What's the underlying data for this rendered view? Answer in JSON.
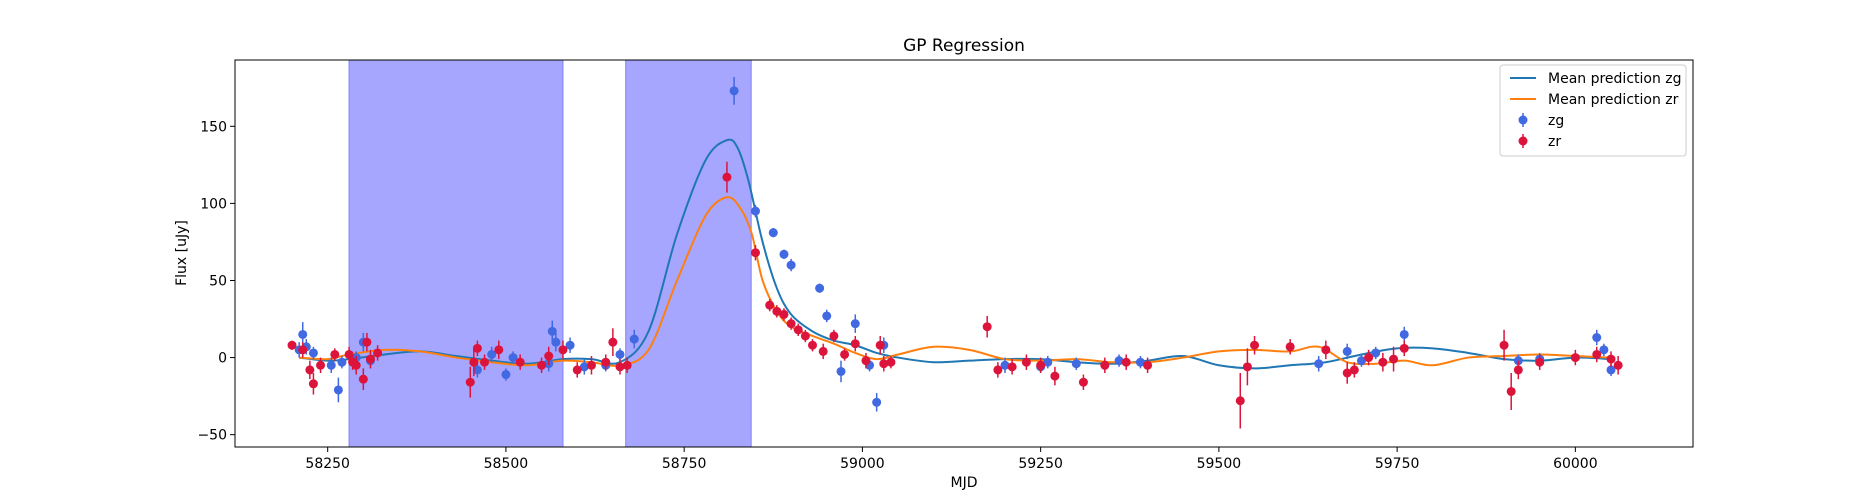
{
  "chart_data": {
    "type": "scatter",
    "title": "GP Regression",
    "xlabel": "MJD",
    "ylabel": "Flux [uJy]",
    "xlim": [
      58120,
      60165
    ],
    "ylim": [
      -58,
      193
    ],
    "x_ticks": [
      58250,
      58500,
      58750,
      59000,
      59250,
      59500,
      59750,
      60000
    ],
    "y_ticks": [
      -50,
      0,
      50,
      100,
      150
    ],
    "shaded_regions": [
      {
        "x": [
          58280,
          58580
        ],
        "color": "#a6a6ff"
      },
      {
        "x": [
          58668,
          58844
        ],
        "color": "#a6a6ff"
      }
    ],
    "legend_placement": "top-right",
    "series": [
      {
        "name": "Mean prediction zg",
        "kind": "line",
        "color": "#1f77b4",
        "x": [
          58210,
          58250,
          58280,
          58330,
          58380,
          58430,
          58480,
          58530,
          58580,
          58620,
          58660,
          58700,
          58740,
          58780,
          58810,
          58825,
          58840,
          58860,
          58880,
          58900,
          58930,
          58960,
          58990,
          59020,
          59050,
          59100,
          59150,
          59200,
          59250,
          59300,
          59350,
          59400,
          59450,
          59500,
          59550,
          59600,
          59650,
          59700,
          59750,
          59800,
          59850,
          59900,
          59950,
          60000,
          60050
        ],
        "y": [
          0,
          -2,
          -1,
          2,
          4,
          1,
          -2,
          -4,
          -1,
          -1,
          -3,
          17,
          80,
          128,
          141,
          136,
          115,
          75,
          45,
          28,
          17,
          11,
          8,
          3,
          0,
          -3,
          -2,
          -1,
          -1,
          -3,
          -4,
          -2,
          1,
          -5,
          -7,
          -5,
          -3,
          2,
          6,
          6,
          3,
          -1,
          -2,
          0,
          -1
        ]
      },
      {
        "name": "Mean prediction zr",
        "kind": "line",
        "color": "#ff7f0e",
        "x": [
          58210,
          58250,
          58280,
          58330,
          58380,
          58430,
          58480,
          58530,
          58580,
          58620,
          58660,
          58700,
          58740,
          58780,
          58810,
          58830,
          58845,
          58860,
          58880,
          58900,
          58930,
          58960,
          58990,
          59020,
          59050,
          59100,
          59150,
          59200,
          59250,
          59300,
          59350,
          59400,
          59450,
          59500,
          59550,
          59600,
          59640,
          59680,
          59720,
          59760,
          59800,
          59850,
          59900,
          59950,
          60000,
          60050
        ],
        "y": [
          0,
          -1,
          2,
          5,
          4,
          0,
          -3,
          -5,
          -2,
          -3,
          -5,
          5,
          50,
          92,
          104,
          96,
          80,
          50,
          30,
          20,
          14,
          9,
          3,
          -1,
          2,
          7,
          5,
          -1,
          -2,
          -1,
          -3,
          -3,
          0,
          4,
          5,
          4,
          7,
          -3,
          -4,
          -2,
          -5,
          0,
          1,
          2,
          1,
          0
        ]
      },
      {
        "name": "zg",
        "kind": "errorbar",
        "color": "#4169e1",
        "x": [
          58210,
          58215,
          58220,
          58230,
          58255,
          58265,
          58270,
          58290,
          58300,
          58310,
          58460,
          58480,
          58500,
          58510,
          58560,
          58565,
          58570,
          58590,
          58610,
          58640,
          58660,
          58680,
          58820,
          58850,
          58875,
          58890,
          58900,
          58940,
          58950,
          58970,
          58990,
          59010,
          59020,
          59030,
          59200,
          59250,
          59260,
          59300,
          59360,
          59390,
          59640,
          59680,
          59700,
          59720,
          59760,
          59920,
          59950,
          60030,
          60040,
          60050
        ],
        "y": [
          5,
          15,
          7,
          3,
          -5,
          -21,
          -3,
          0,
          10,
          -2,
          -8,
          2,
          -11,
          0,
          -4,
          17,
          10,
          8,
          -6,
          -5,
          2,
          12,
          173,
          95,
          81,
          67,
          60,
          45,
          27,
          -9,
          22,
          -5,
          -29,
          8,
          -5,
          -6,
          -3,
          -4,
          -2,
          -3,
          -4,
          4,
          -2,
          3,
          15,
          -2,
          -1,
          13,
          5,
          -8
        ],
        "err": [
          5,
          8,
          5,
          4,
          5,
          8,
          4,
          4,
          6,
          5,
          5,
          5,
          4,
          4,
          5,
          7,
          6,
          5,
          5,
          4,
          4,
          6,
          9,
          4,
          3,
          3,
          4,
          3,
          4,
          7,
          6,
          4,
          6,
          5,
          5,
          4,
          4,
          4,
          4,
          4,
          5,
          5,
          4,
          4,
          5,
          4,
          4,
          5,
          4,
          4
        ]
      },
      {
        "name": "zr",
        "kind": "errorbar",
        "color": "#dc143c",
        "x": [
          58200,
          58215,
          58225,
          58230,
          58240,
          58260,
          58280,
          58285,
          58290,
          58300,
          58305,
          58310,
          58320,
          58450,
          58455,
          58460,
          58470,
          58490,
          58520,
          58550,
          58560,
          58580,
          58600,
          58620,
          58640,
          58650,
          58660,
          58670,
          58810,
          58850,
          58870,
          58880,
          58890,
          58900,
          58910,
          58920,
          58930,
          58945,
          58960,
          58975,
          58990,
          59005,
          59025,
          59030,
          59040,
          59175,
          59190,
          59210,
          59230,
          59250,
          59270,
          59310,
          59340,
          59370,
          59400,
          59530,
          59540,
          59550,
          59600,
          59650,
          59680,
          59690,
          59710,
          59730,
          59745,
          59760,
          59900,
          59910,
          59920,
          59950,
          60000,
          60030,
          60050,
          60060
        ],
        "y": [
          8,
          5,
          -8,
          -17,
          -5,
          2,
          2,
          -3,
          -5,
          -14,
          10,
          -1,
          3,
          -16,
          -3,
          6,
          -3,
          5,
          -3,
          -5,
          1,
          5,
          -8,
          -5,
          -3,
          10,
          -6,
          -5,
          117,
          68,
          34,
          30,
          28,
          22,
          18,
          14,
          8,
          4,
          14,
          2,
          9,
          -2,
          8,
          -4,
          -3,
          20,
          -8,
          -6,
          -3,
          -5,
          -12,
          -16,
          -5,
          -3,
          -5,
          -28,
          -6,
          8,
          7,
          5,
          -10,
          -8,
          0,
          -3,
          -1,
          6,
          8,
          -22,
          -8,
          -3,
          0,
          2,
          -1,
          -5
        ],
        "err": [
          3,
          5,
          6,
          7,
          5,
          4,
          5,
          5,
          6,
          7,
          6,
          6,
          5,
          10,
          9,
          5,
          5,
          6,
          5,
          5,
          6,
          6,
          5,
          6,
          5,
          9,
          5,
          5,
          10,
          5,
          4,
          4,
          4,
          4,
          4,
          4,
          4,
          5,
          4,
          4,
          5,
          5,
          6,
          5,
          4,
          7,
          5,
          5,
          5,
          5,
          6,
          5,
          5,
          5,
          5,
          18,
          12,
          6,
          5,
          6,
          7,
          5,
          5,
          6,
          8,
          5,
          10,
          12,
          6,
          5,
          5,
          5,
          5,
          6
        ]
      }
    ]
  }
}
